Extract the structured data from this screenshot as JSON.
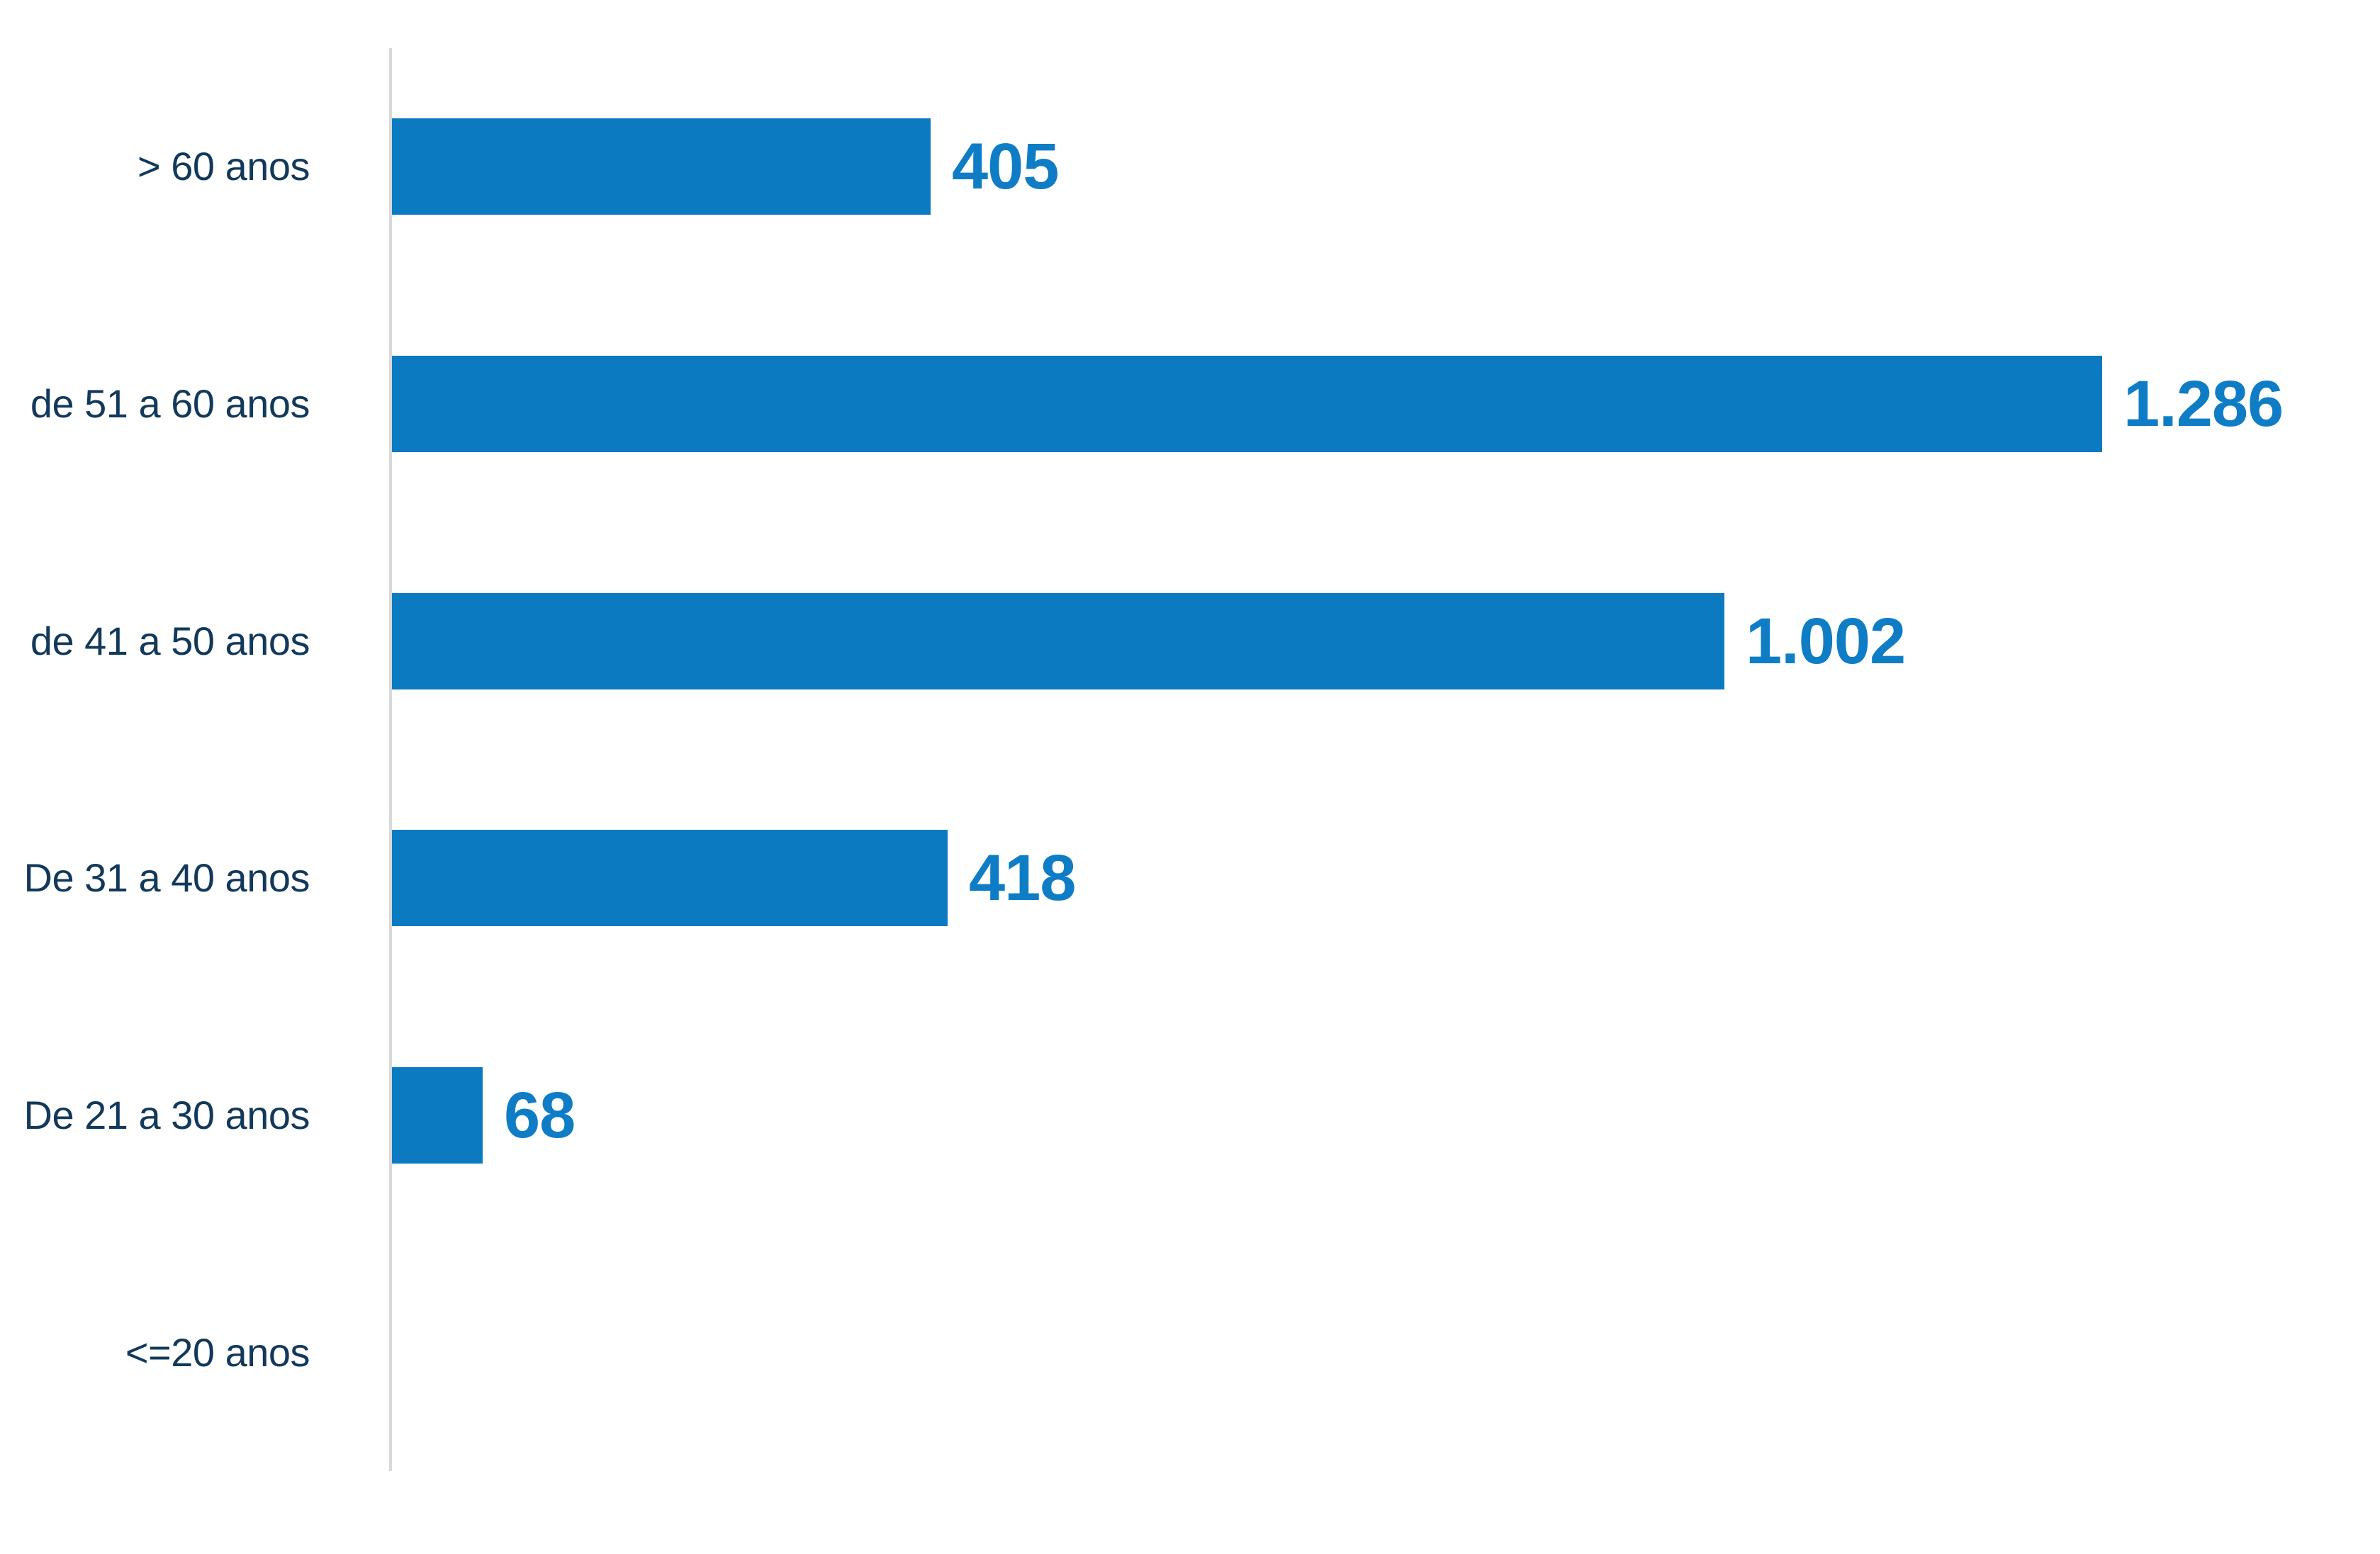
{
  "chart_data": {
    "type": "bar",
    "orientation": "horizontal",
    "title": "",
    "xlabel": "",
    "ylabel": "",
    "categories": [
      "> 60 anos",
      "de 51 a 60 anos",
      "de 41 a 50 anos",
      "De 31 a 40 anos",
      "De 21 a 30 anos",
      "<=20 anos"
    ],
    "values": [
      405,
      1286,
      1002,
      418,
      68,
      0
    ],
    "value_labels": [
      "405",
      "1.286",
      "1.002",
      "418",
      "68",
      ""
    ],
    "xlim": [
      0,
      1497
    ],
    "grid": false,
    "legend": false,
    "colors": {
      "bar": "#0b7ac1",
      "value_label": "#0f7dc5",
      "category_label": "#12395b",
      "axis_line": "#d9d9d9",
      "background": "#ffffff"
    }
  }
}
